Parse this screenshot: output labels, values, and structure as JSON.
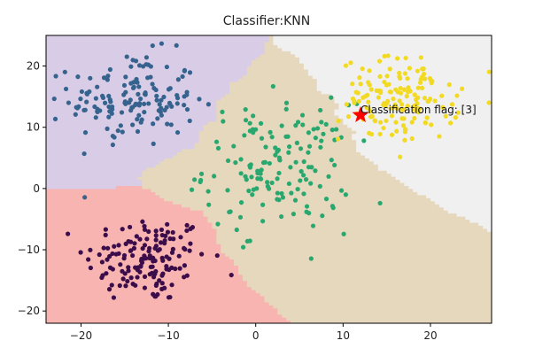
{
  "chart_data": {
    "type": "scatter",
    "title": "Classifier:KNN",
    "xlabel": "",
    "ylabel": "",
    "xlim": [
      -24,
      27
    ],
    "ylim": [
      -22,
      25
    ],
    "xticks": [
      -20,
      -10,
      0,
      10,
      20
    ],
    "yticks": [
      -20,
      -10,
      0,
      10,
      20
    ],
    "xtick_labels": [
      "−20",
      "−10",
      "0",
      "10",
      "20"
    ],
    "ytick_labels": [
      "−20",
      "−10",
      "0",
      "10",
      "20"
    ],
    "grid": false,
    "region_colors": {
      "0": "#f8b4b1",
      "1": "#d9cce6",
      "2": "#e6d8bd",
      "3": "#f0f0f0"
    },
    "class_colors": {
      "0": "#3b0d4a",
      "1": "#35638e",
      "2": "#28a86f",
      "3": "#f2da22"
    },
    "clusters": [
      {
        "label": 0,
        "center": [
          -12.5,
          -11.5
        ],
        "spread": [
          3.5,
          3.6
        ],
        "count": 150
      },
      {
        "label": 1,
        "center": [
          -14.0,
          14.5
        ],
        "spread": [
          3.6,
          3.8
        ],
        "count": 150
      },
      {
        "label": 2,
        "center": [
          2.5,
          3.5
        ],
        "spread": [
          4.2,
          5.2
        ],
        "count": 150
      },
      {
        "label": 3,
        "center": [
          16.5,
          14.5
        ],
        "spread": [
          3.4,
          3.4
        ],
        "count": 150
      }
    ],
    "query_point": {
      "x": 12,
      "y": 12,
      "marker": "star",
      "color": "#ff0000"
    },
    "annotation": {
      "text": "Classification flag: [3]",
      "x": 12,
      "y": 12
    }
  }
}
